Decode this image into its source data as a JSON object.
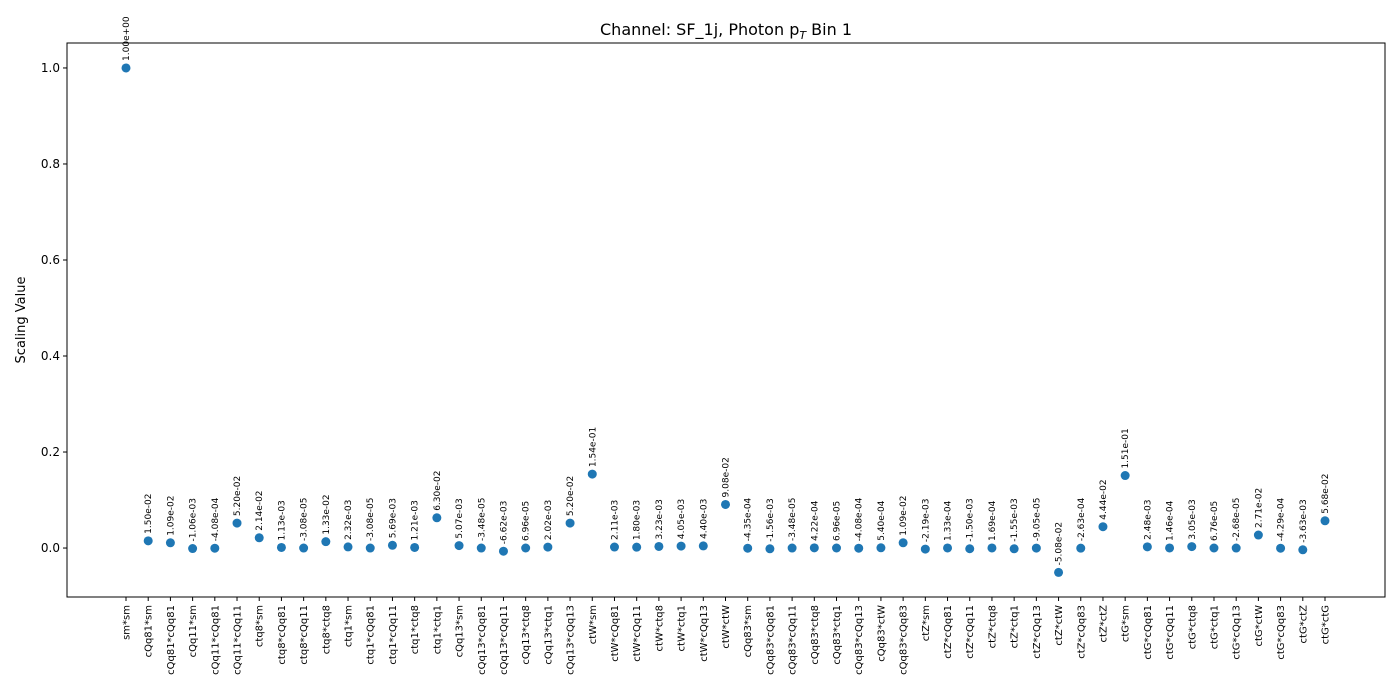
{
  "chart_data": {
    "type": "scatter",
    "title": "Channel: SF_1j, Photon p",
    "title_sub": "T",
    "title_suffix": " Bin 1",
    "xlabel": "",
    "ylabel": "Scaling Value",
    "ylim": [
      -0.102,
      1.052
    ],
    "yticks": [
      0.0,
      0.2,
      0.4,
      0.6,
      0.8,
      1.0
    ],
    "ytick_labels": [
      "0.0",
      "0.2",
      "0.4",
      "0.6",
      "0.8",
      "1.0"
    ],
    "grid": false,
    "legend": "none",
    "color": "#1f77b4",
    "categories": [
      "sm*sm",
      "cQq81*sm",
      "cQq81*cQq81",
      "cQq11*sm",
      "cQq11*cQq81",
      "cQq11*cQq11",
      "ctq8*sm",
      "ctq8*cQq81",
      "ctq8*cQq11",
      "ctq8*ctq8",
      "ctq1*sm",
      "ctq1*cQq81",
      "ctq1*cQq11",
      "ctq1*ctq8",
      "ctq1*ctq1",
      "cQq13*sm",
      "cQq13*cQq81",
      "cQq13*cQq11",
      "cQq13*ctq8",
      "cQq13*ctq1",
      "cQq13*cQq13",
      "ctW*sm",
      "ctW*cQq81",
      "ctW*cQq11",
      "ctW*ctq8",
      "ctW*ctq1",
      "ctW*cQq13",
      "ctW*ctW",
      "cQq83*sm",
      "cQq83*cQq81",
      "cQq83*cQq11",
      "cQq83*ctq8",
      "cQq83*ctq1",
      "cQq83*cQq13",
      "cQq83*ctW",
      "cQq83*cQq83",
      "ctZ*sm",
      "ctZ*cQq81",
      "ctZ*cQq11",
      "ctZ*ctq8",
      "ctZ*ctq1",
      "ctZ*cQq13",
      "ctZ*ctW",
      "ctZ*cQq83",
      "ctZ*ctZ",
      "ctG*sm",
      "ctG*cQq81",
      "ctG*cQq11",
      "ctG*ctq8",
      "ctG*ctq1",
      "ctG*cQq13",
      "ctG*ctW",
      "ctG*cQq83",
      "ctG*ctZ",
      "ctG*ctG"
    ],
    "values": [
      1.0,
      0.015,
      0.0109,
      -0.00106,
      -0.000408,
      0.052,
      0.0214,
      0.00113,
      -3.08e-05,
      0.0133,
      0.00232,
      -3.08e-05,
      0.00569,
      0.00121,
      0.063,
      0.00507,
      -3.48e-05,
      -0.00662,
      6.96e-05,
      0.00202,
      0.052,
      0.154,
      0.00211,
      0.0018,
      0.00323,
      0.00405,
      0.0044,
      0.0908,
      -0.000435,
      -0.00156,
      -3.48e-05,
      0.000422,
      6.96e-05,
      -0.000408,
      0.00054,
      0.0109,
      -0.00219,
      0.000133,
      -0.0015,
      0.000169,
      -0.00155,
      -9.05e-05,
      -0.0508,
      -0.000263,
      0.0444,
      0.151,
      0.00248,
      0.000146,
      0.00305,
      6.76e-05,
      -2.68e-05,
      0.0271,
      -0.000429,
      -0.00363,
      0.0568
    ],
    "data_labels": [
      "1.00e+00",
      "1.50e-02",
      "1.09e-02",
      "-1.06e-03",
      "-4.08e-04",
      "5.20e-02",
      "2.14e-02",
      "1.13e-03",
      "-3.08e-05",
      "1.33e-02",
      "2.32e-03",
      "-3.08e-05",
      "5.69e-03",
      "1.21e-03",
      "6.30e-02",
      "5.07e-03",
      "-3.48e-05",
      "-6.62e-03",
      "6.96e-05",
      "2.02e-03",
      "5.20e-02",
      "1.54e-01",
      "2.11e-03",
      "1.80e-03",
      "3.23e-03",
      "4.05e-03",
      "4.40e-03",
      "9.08e-02",
      "-4.35e-04",
      "-1.56e-03",
      "-3.48e-05",
      "4.22e-04",
      "6.96e-05",
      "-4.08e-04",
      "5.40e-04",
      "1.09e-02",
      "-2.19e-03",
      "1.33e-04",
      "-1.50e-03",
      "1.69e-04",
      "-1.55e-03",
      "-9.05e-05",
      "-5.08e-02",
      "-2.63e-04",
      "4.44e-02",
      "1.51e-01",
      "2.48e-03",
      "1.46e-04",
      "3.05e-03",
      "6.76e-05",
      "-2.68e-05",
      "2.71e-02",
      "-4.29e-04",
      "-3.63e-03",
      "5.68e-02"
    ]
  }
}
